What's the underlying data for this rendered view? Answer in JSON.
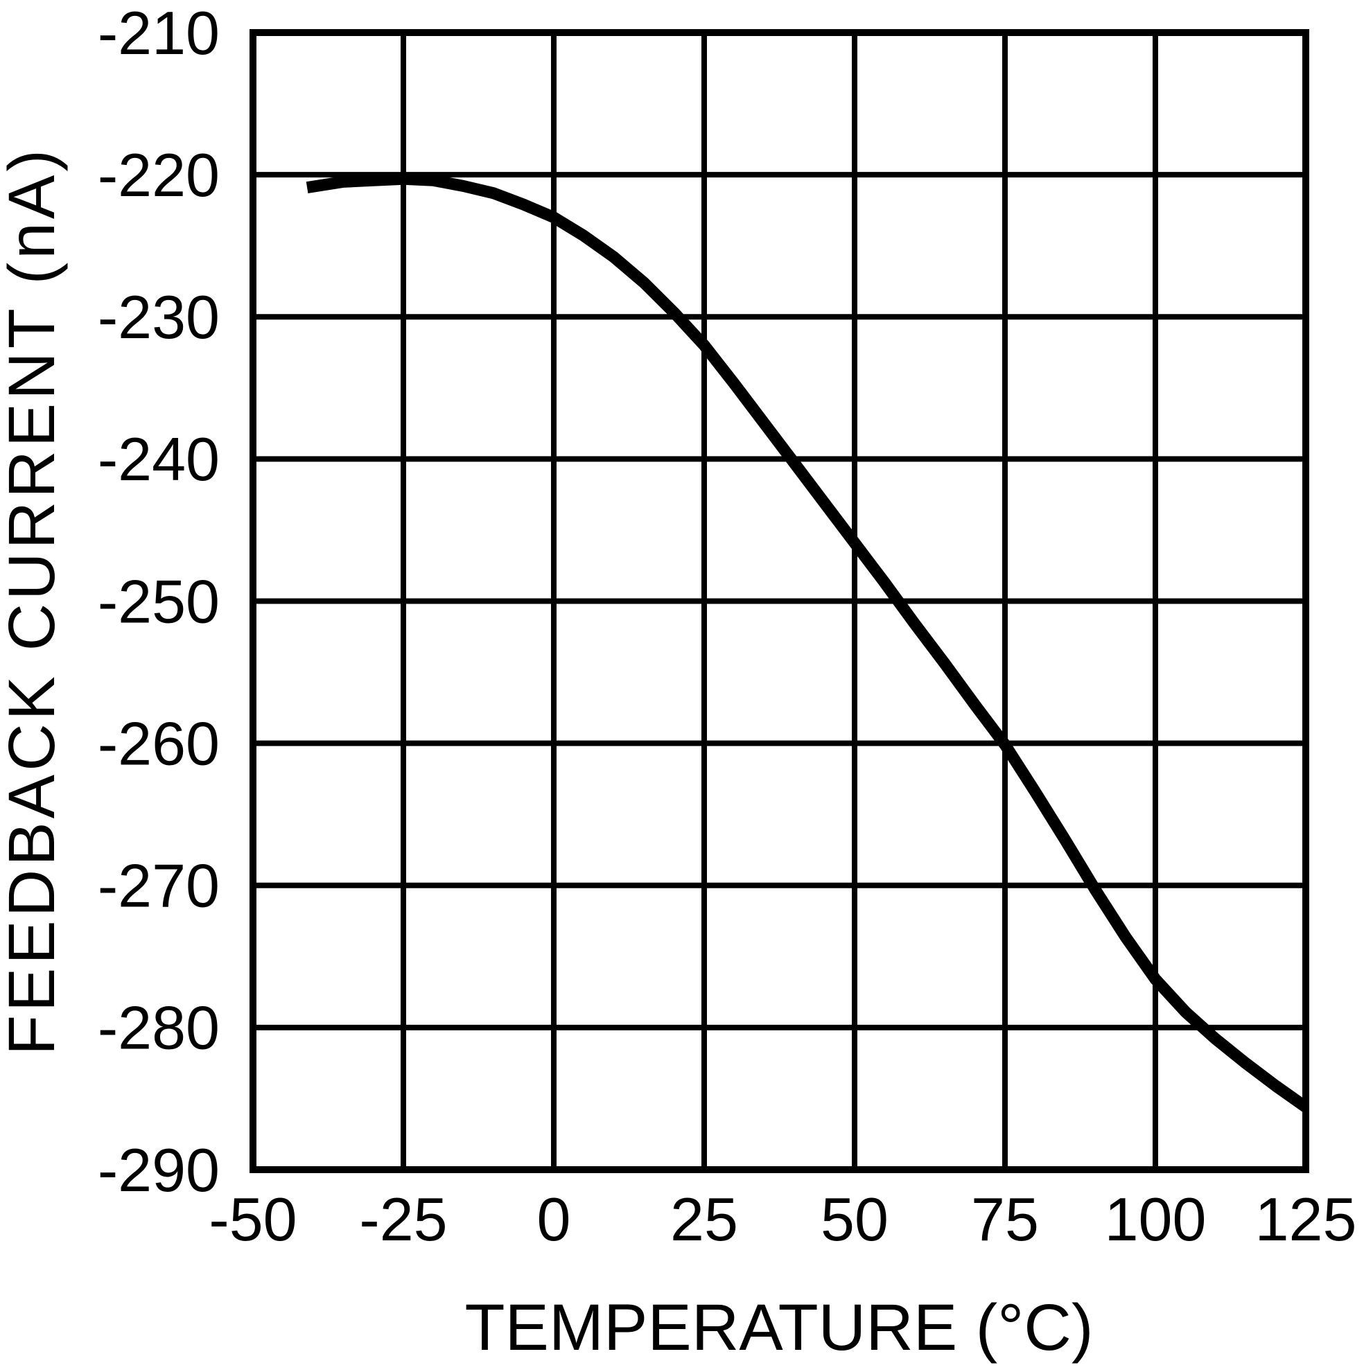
{
  "colors": {
    "background": "#ffffff",
    "axis": "#000000",
    "grid": "#000000",
    "line": "#000000",
    "text": "#000000"
  },
  "chart_data": {
    "type": "line",
    "title": "",
    "xlabel": "TEMPERATURE (°C)",
    "ylabel": "FEEDBACK CURRENT (nA)",
    "xlim": [
      -50,
      125
    ],
    "ylim": [
      -290,
      -210
    ],
    "x_ticks": [
      -50,
      -25,
      0,
      25,
      50,
      75,
      100,
      125
    ],
    "y_ticks": [
      -210,
      -220,
      -230,
      -240,
      -250,
      -260,
      -270,
      -280,
      -290
    ],
    "grid": true,
    "legend": "none",
    "series": [
      {
        "name": "feedback-current",
        "x": [
          -41,
          -35,
          -30,
          -25,
          -20,
          -15,
          -10,
          -5,
          0,
          5,
          10,
          15,
          20,
          25,
          30,
          35,
          40,
          45,
          50,
          55,
          60,
          65,
          70,
          75,
          80,
          85,
          90,
          95,
          100,
          105,
          110,
          115,
          120,
          125
        ],
        "y": [
          -220.9,
          -220.5,
          -220.4,
          -220.3,
          -220.4,
          -220.8,
          -221.3,
          -222.1,
          -223.0,
          -224.3,
          -225.8,
          -227.6,
          -229.7,
          -232.0,
          -234.7,
          -237.5,
          -240.3,
          -243.1,
          -245.9,
          -248.7,
          -251.6,
          -254.4,
          -257.3,
          -260.1,
          -263.4,
          -266.8,
          -270.3,
          -273.6,
          -276.6,
          -278.9,
          -280.8,
          -282.5,
          -284.1,
          -285.6
        ]
      }
    ]
  }
}
